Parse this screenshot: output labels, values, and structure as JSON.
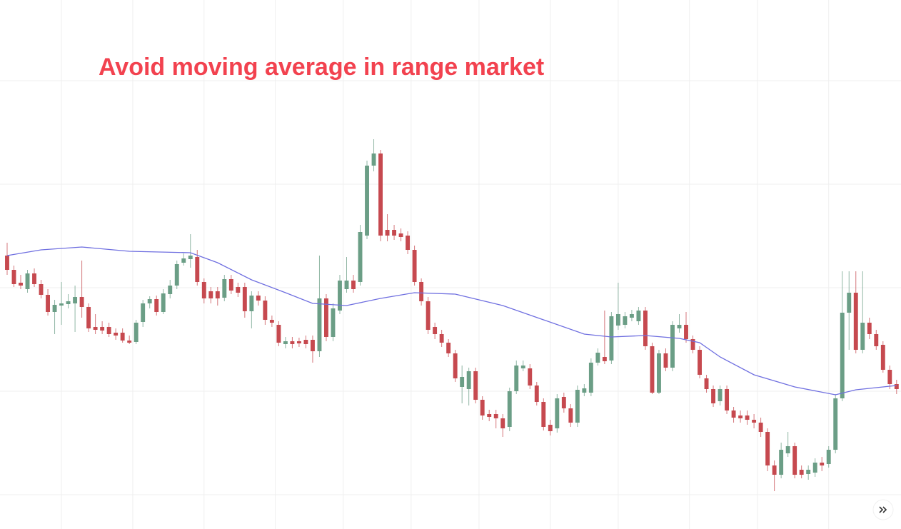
{
  "chart_data": {
    "type": "candlestick",
    "title": "Avoid moving average in range market",
    "title_color": "#f2424f",
    "up_color": "#6b9e86",
    "down_color": "#c6494f",
    "grid": true,
    "xlim": [
      -1.05,
      131.65
    ],
    "ylim": [
      0,
      741
    ],
    "xticks": [
      8,
      18.5,
      29,
      39.5,
      49.5,
      59.5,
      69.5,
      80,
      90,
      100.5,
      110.5,
      121
    ],
    "yticks": [
      48,
      193,
      338,
      483,
      628
    ],
    "open": [
      383,
      363,
      345,
      336,
      358,
      343,
      328,
      304,
      313,
      315,
      316,
      325,
      311,
      283,
      283,
      283,
      275,
      275,
      264,
      262,
      290,
      316,
      322,
      304,
      329,
      341,
      373,
      378,
      381,
      346,
      333,
      333,
      324,
      350,
      339,
      339,
      305,
      327,
      320,
      293,
      286,
      259,
      263,
      263,
      265,
      265,
      249,
      323,
      269,
      306,
      336,
      348,
      346,
      411,
      509,
      526,
      419,
      419,
      414,
      411,
      391,
      346,
      319,
      283,
      273,
      261,
      246,
      199,
      196,
      221,
      181,
      161,
      161,
      155,
      143,
      193,
      225,
      225,
      201,
      178,
      146,
      141,
      185,
      169,
      149,
      191,
      191,
      233,
      241,
      236,
      285,
      286,
      296,
      291,
      306,
      256,
      191,
      246,
      226,
      281,
      286,
      266,
      251,
      211,
      196,
      179,
      196,
      166,
      159,
      159,
      153,
      149,
      136,
      89,
      76,
      106,
      116,
      83,
      77,
      79,
      93,
      91,
      111,
      183,
      303,
      331,
      251,
      289,
      273,
      258,
      223,
      203
    ],
    "high": [
      401,
      369,
      356,
      363,
      365,
      349,
      336,
      321,
      346,
      329,
      341,
      376,
      316,
      301,
      291,
      289,
      281,
      281,
      271,
      293,
      321,
      326,
      327,
      336,
      349,
      376,
      386,
      413,
      391,
      351,
      339,
      339,
      356,
      356,
      345,
      345,
      333,
      333,
      326,
      299,
      291,
      269,
      269,
      268,
      271,
      271,
      383,
      329,
      316,
      356,
      381,
      356,
      426,
      516,
      546,
      531,
      441,
      426,
      421,
      417,
      397,
      351,
      325,
      289,
      279,
      266,
      251,
      229,
      226,
      226,
      186,
      167,
      167,
      161,
      198,
      236,
      236,
      231,
      206,
      183,
      153,
      189,
      191,
      175,
      201,
      203,
      239,
      253,
      306,
      304,
      345,
      304,
      307,
      311,
      311,
      261,
      251,
      253,
      291,
      301,
      304,
      271,
      256,
      216,
      201,
      201,
      201,
      171,
      166,
      166,
      161,
      156,
      141,
      96,
      121,
      136,
      121,
      89,
      89,
      99,
      101,
      116,
      189,
      361,
      361,
      361,
      361,
      296,
      279,
      263,
      229,
      209
    ],
    "low": [
      356,
      339,
      336,
      331,
      339,
      323,
      299,
      273,
      286,
      309,
      276,
      296,
      276,
      273,
      273,
      269,
      265,
      261,
      259,
      259,
      283,
      309,
      299,
      301,
      323,
      336,
      369,
      366,
      341,
      316,
      316,
      313,
      319,
      329,
      325,
      296,
      281,
      313,
      286,
      283,
      256,
      253,
      253,
      255,
      253,
      233,
      241,
      263,
      263,
      301,
      331,
      331,
      341,
      406,
      501,
      403,
      403,
      405,
      403,
      385,
      341,
      313,
      273,
      266,
      255,
      241,
      206,
      176,
      173,
      176,
      153,
      151,
      141,
      129,
      137,
      189,
      221,
      196,
      173,
      138,
      131,
      135,
      163,
      143,
      143,
      186,
      186,
      229,
      231,
      231,
      279,
      281,
      291,
      286,
      251,
      189,
      189,
      221,
      221,
      275,
      261,
      246,
      211,
      191,
      171,
      173,
      161,
      149,
      149,
      146,
      141,
      129,
      81,
      53,
      71,
      101,
      71,
      71,
      69,
      73,
      81,
      86,
      106,
      179,
      251,
      246,
      246,
      266,
      251,
      219,
      196,
      189
    ],
    "close": [
      363,
      343,
      341,
      358,
      343,
      328,
      304,
      314,
      316,
      319,
      325,
      311,
      281,
      279,
      278,
      273,
      271,
      264,
      261,
      289,
      316,
      322,
      304,
      330,
      341,
      371,
      379,
      383,
      346,
      323,
      323,
      323,
      350,
      334,
      331,
      305,
      327,
      320,
      293,
      289,
      261,
      263,
      259,
      260,
      259,
      249,
      323,
      269,
      309,
      348,
      348,
      336,
      416,
      509,
      526,
      411,
      411,
      411,
      409,
      391,
      346,
      319,
      279,
      273,
      261,
      246,
      211,
      213,
      221,
      181,
      159,
      157,
      155,
      141,
      193,
      229,
      229,
      201,
      178,
      143,
      137,
      183,
      169,
      149,
      195,
      197,
      233,
      247,
      235,
      298,
      301,
      298,
      301,
      306,
      256,
      191,
      246,
      226,
      286,
      286,
      266,
      251,
      216,
      196,
      176,
      196,
      166,
      156,
      155,
      153,
      149,
      136,
      89,
      76,
      111,
      116,
      76,
      76,
      83,
      93,
      89,
      111,
      183,
      303,
      331,
      251,
      289,
      273,
      256,
      223,
      203,
      196
    ],
    "moving_average": {
      "color": "#6f6fe0",
      "x": [
        0,
        5,
        11,
        18,
        27,
        31,
        36,
        41,
        45,
        50,
        55,
        60,
        66,
        73,
        79,
        85,
        89,
        94,
        99,
        102,
        105,
        110,
        116,
        122,
        125,
        131
      ],
      "values": [
        383,
        391,
        395,
        389,
        387,
        373,
        349,
        331,
        316,
        313,
        323,
        331,
        329,
        313,
        293,
        273,
        269,
        271,
        267,
        261,
        241,
        216,
        199,
        188,
        195,
        201
      ]
    }
  }
}
